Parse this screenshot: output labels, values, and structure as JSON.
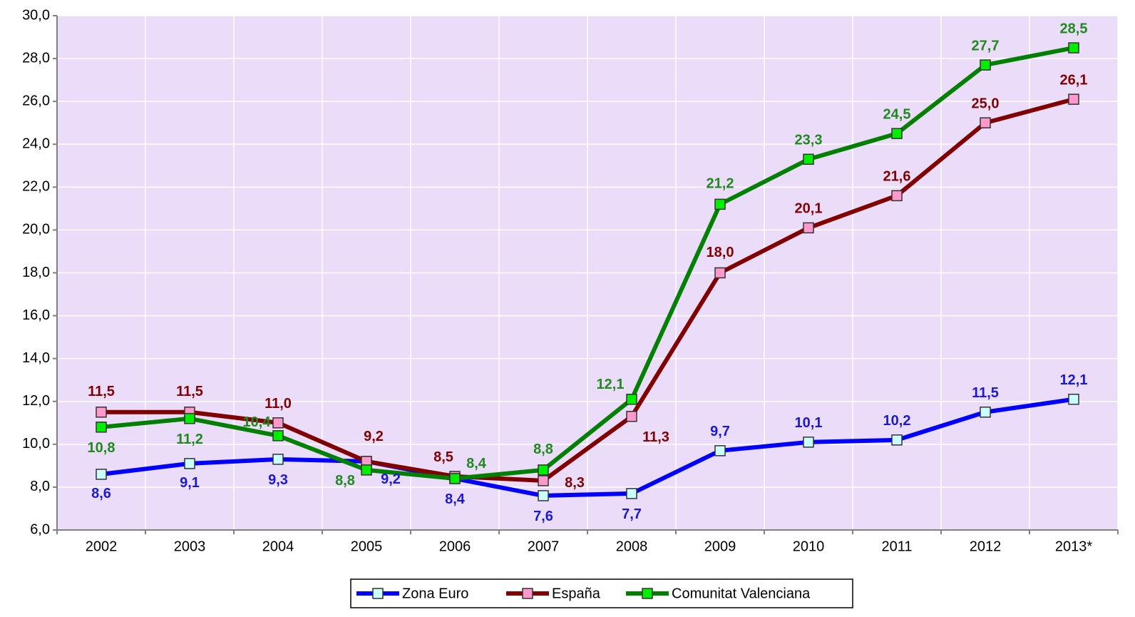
{
  "chart_data": {
    "type": "line",
    "categories": [
      "2002",
      "2003",
      "2004",
      "2005",
      "2006",
      "2007",
      "2008",
      "2009",
      "2010",
      "2011",
      "2012",
      "2013*"
    ],
    "ylim": [
      6,
      30
    ],
    "yticks": [
      {
        "value": 6,
        "label": "6,0"
      },
      {
        "value": 8,
        "label": "8,0"
      },
      {
        "value": 10,
        "label": "10,0"
      },
      {
        "value": 12,
        "label": "12,0"
      },
      {
        "value": 14,
        "label": "14,0"
      },
      {
        "value": 16,
        "label": "16,0"
      },
      {
        "value": 18,
        "label": "18,0"
      },
      {
        "value": 20,
        "label": "20,0"
      },
      {
        "value": 22,
        "label": "22,0"
      },
      {
        "value": 24,
        "label": "24,0"
      },
      {
        "value": 26,
        "label": "26,0"
      },
      {
        "value": 28,
        "label": "28,0"
      },
      {
        "value": 30,
        "label": "30,0"
      }
    ],
    "grid": true,
    "legend": "bottom",
    "series": [
      {
        "name": "Zona Euro",
        "color": "#0000ff",
        "marker_color": "#ccffff",
        "label_color": "#1a1ad6",
        "values": [
          8.6,
          9.1,
          9.3,
          9.2,
          8.4,
          7.6,
          7.7,
          9.7,
          10.1,
          10.2,
          11.5,
          12.1
        ],
        "value_labels": [
          "8,6",
          "9,1",
          "9,3",
          "9,2",
          "8,4",
          "7,6",
          "7,7",
          "9,7",
          "10,1",
          "10,2",
          "11,5",
          "12,1"
        ]
      },
      {
        "name": "España",
        "color": "#800000",
        "marker_color": "#ff99cc",
        "label_color": "#800000",
        "values": [
          11.5,
          11.5,
          11.0,
          9.2,
          8.5,
          8.3,
          11.3,
          18.0,
          20.1,
          21.6,
          25.0,
          26.1
        ],
        "value_labels": [
          "11,5",
          "11,5",
          "11,0",
          "9,2",
          "8,5",
          "8,3",
          "11,3",
          "18,0",
          "20,1",
          "21,6",
          "25,0",
          "26,1"
        ]
      },
      {
        "name": "Comunitat Valenciana",
        "color": "#008000",
        "marker_color": "#00ee00",
        "label_color": "#1e8a1e",
        "values": [
          10.8,
          11.2,
          10.4,
          8.8,
          8.4,
          8.8,
          12.1,
          21.2,
          23.3,
          24.5,
          27.7,
          28.5
        ],
        "value_labels": [
          "10,8",
          "11,2",
          "10,4",
          "8,8",
          "8,4",
          "8,8",
          "12,1",
          "21,2",
          "23,3",
          "24,5",
          "27,7",
          "28,5"
        ]
      }
    ]
  }
}
